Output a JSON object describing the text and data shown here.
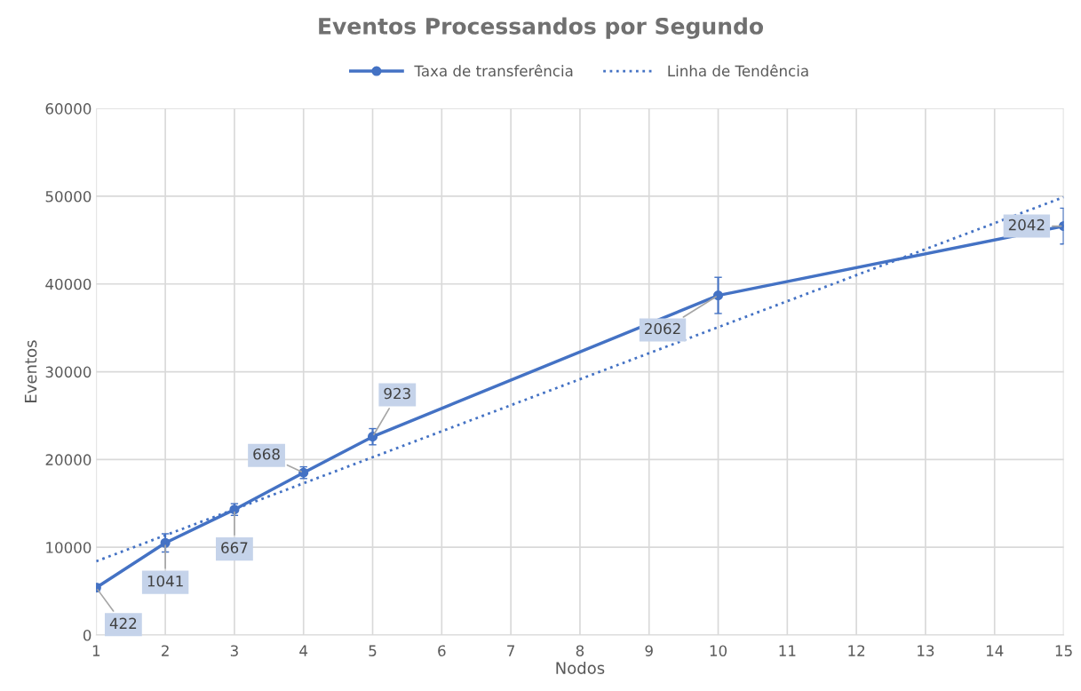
{
  "chart_data": {
    "type": "line",
    "title": "Eventos Processandos por Segundo",
    "xlabel": "Nodos",
    "ylabel": "Eventos",
    "xlim": [
      1,
      15
    ],
    "xticks": [
      1,
      2,
      3,
      4,
      5,
      6,
      7,
      8,
      9,
      10,
      11,
      12,
      13,
      14,
      15
    ],
    "ylim": [
      0,
      60000
    ],
    "yticks": [
      0,
      10000,
      20000,
      30000,
      40000,
      50000,
      60000
    ],
    "grid": true,
    "legend": "top",
    "series": [
      {
        "name": "Taxa de transferência",
        "color": "#4472c4",
        "marker": "circle",
        "line_style": "solid",
        "x": [
          1,
          2,
          3,
          4,
          5,
          10,
          15
        ],
        "values": [
          5400,
          10500,
          14300,
          18500,
          22600,
          38700,
          46600
        ],
        "errors": [
          422,
          1041,
          667,
          668,
          923,
          2062,
          2042
        ]
      },
      {
        "name": "Linha de Tendência",
        "color": "#4472c4",
        "marker": "none",
        "line_style": "dotted",
        "x": [
          1,
          15
        ],
        "values": [
          8400,
          49900
        ]
      }
    ],
    "annotations": [
      {
        "text": "422",
        "x": 1,
        "y": 5400
      },
      {
        "text": "1041",
        "x": 2,
        "y": 10500
      },
      {
        "text": "667",
        "x": 3,
        "y": 14300
      },
      {
        "text": "668",
        "x": 4,
        "y": 18500
      },
      {
        "text": "923",
        "x": 5,
        "y": 22600
      },
      {
        "text": "2062",
        "x": 10,
        "y": 38700
      },
      {
        "text": "2042",
        "x": 15,
        "y": 46600
      }
    ]
  }
}
